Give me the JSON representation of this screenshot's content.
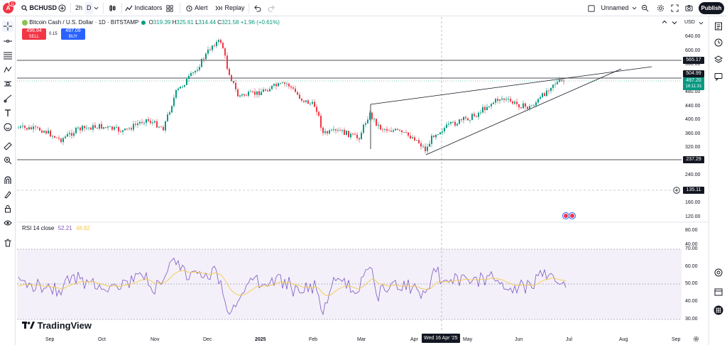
{
  "app": {
    "brand": "TradingView",
    "avatar_letter": "A",
    "notification_count": "11",
    "accent": "#2962ff",
    "up_color": "#089981",
    "down_color": "#f23645"
  },
  "toolbar": {
    "symbol": "BCHUSD",
    "add_symbol_icon": "plus-circle-icon",
    "interval": "2h",
    "interval_alt": "D",
    "indicators_label": "Indicators",
    "alert_label": "Alert",
    "replay_label": "Replay",
    "layout_name": "Unnamed",
    "publish_label": "Publish"
  },
  "legend": {
    "title": "Bitcoin Cash / U.S. Dollar · 1D · BITSTAMP",
    "o_label": "O",
    "o_value": "319.39",
    "h_label": "H",
    "h_value": "325.61",
    "l_label": "L",
    "l_value": "314.44",
    "c_label": "C",
    "c_value": "321.58",
    "change": "+1.96 (+0.61%)",
    "sell_price": "496.94",
    "sell_label": "SELL",
    "spread": "0.15",
    "buy_price": "497.09",
    "buy_label": "BUY"
  },
  "price_axis": {
    "currency": "USD",
    "ticks": [
      "640.00",
      "600.00",
      "560.00",
      "520.00",
      "480.00",
      "440.00",
      "400.00",
      "360.00",
      "320.00",
      "280.00",
      "240.00",
      "200.00",
      "160.00",
      "120.00",
      "80.00",
      "40.00"
    ],
    "line_labels": {
      "h1": "565.17",
      "h2": "504.99",
      "last_price": "497.20",
      "countdown": "16:11:31",
      "h3": "237.29",
      "crosshair": "135.11"
    }
  },
  "rsi": {
    "label": "RSI 14 close",
    "value1": "52.21",
    "value2": "48.82",
    "ticks": [
      "70.00",
      "60.00",
      "50.00",
      "40.00",
      "30.00"
    ],
    "line_color": "#7e57c2",
    "ma_color": "#f7c948"
  },
  "time_axis": {
    "labels": [
      "Sep",
      "Oct",
      "Nov",
      "Dec",
      "2025",
      "Feb",
      "Mar",
      "Apr",
      "May",
      "Jun",
      "Jul",
      "Aug",
      "Sep"
    ],
    "crosshair_date": "Wed 16 Apr '25"
  }
}
